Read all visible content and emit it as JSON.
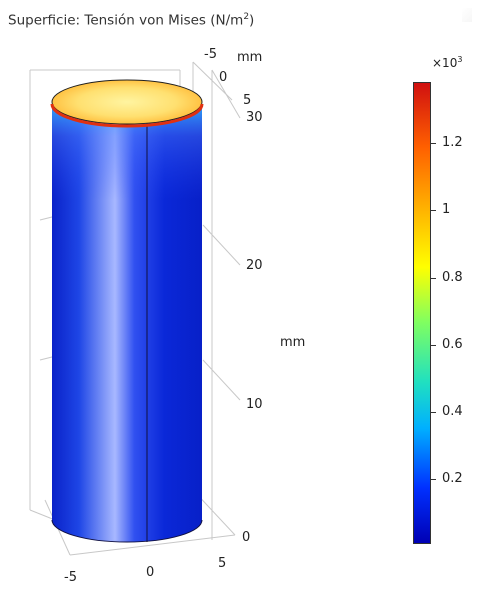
{
  "title": {
    "prefix": "Superficie: Tensión von Mises (N/m",
    "exponent": "2",
    "suffix": ")"
  },
  "axes": {
    "unit_label": "mm",
    "z_unit_label": "mm",
    "top_ticks": [
      "-5",
      "0",
      "5"
    ],
    "z_ticks": [
      "30",
      "20",
      "10",
      "0"
    ],
    "x_ticks": [
      "-5",
      "0",
      "5"
    ]
  },
  "colorbar": {
    "multiplier_base": "×10",
    "multiplier_exponent": "3",
    "labels": [
      "1.2",
      "1",
      "0.8",
      "0.6",
      "0.4",
      "0.2"
    ],
    "colors": [
      "#0000b4",
      "#0030ff",
      "#00b0ff",
      "#20e0c0",
      "#80ff60",
      "#ffff00",
      "#ffb000",
      "#ff6000",
      "#d01010"
    ]
  }
}
